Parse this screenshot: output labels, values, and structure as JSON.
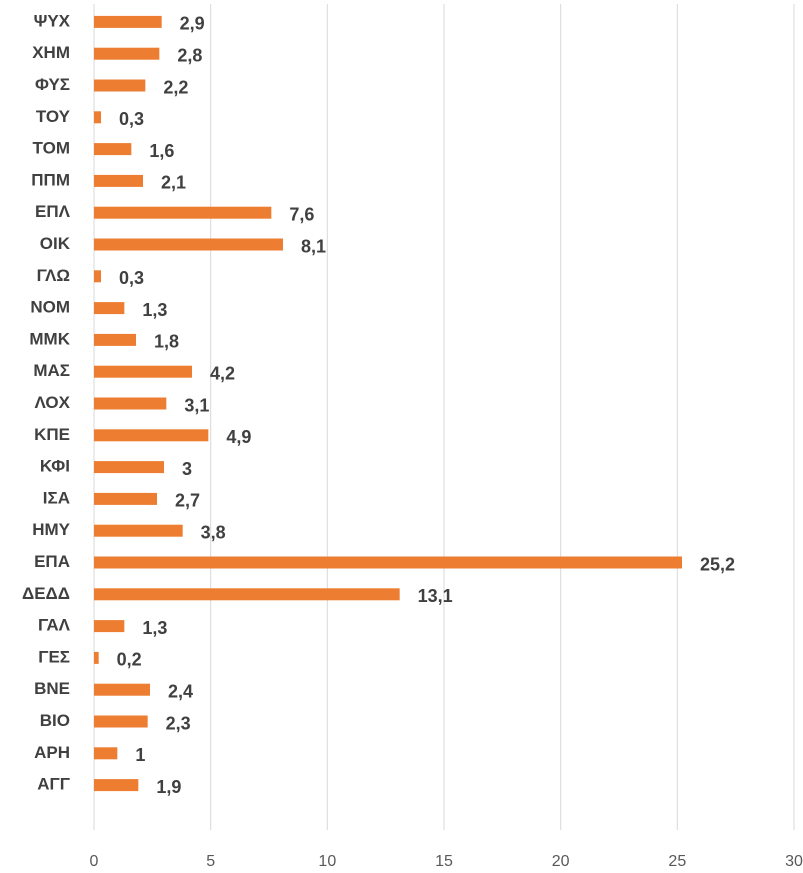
{
  "chart_data": {
    "type": "bar",
    "orientation": "horizontal",
    "categories": [
      "ΨΥΧ",
      "ΧΗΜ",
      "ΦΥΣ",
      "ΤΟΥ",
      "ΤΟΜ",
      "ΠΠΜ",
      "ΕΠΛ",
      "ΟΙΚ",
      "ΓΛΩ",
      "ΝΟΜ",
      "ΜΜΚ",
      "ΜΑΣ",
      "ΛΟΧ",
      "ΚΠΕ",
      "ΚΦΙ",
      "ΙΣΑ",
      "ΗΜΥ",
      "ΕΠΑ",
      "ΔΕΔΔ",
      "ΓΑΛ",
      "ΓΕΣ",
      "ΒΝΕ",
      "ΒΙΟ",
      "ΑΡΗ",
      "ΑΓΓ"
    ],
    "values": [
      2.9,
      2.8,
      2.2,
      0.3,
      1.6,
      2.1,
      7.6,
      8.1,
      0.3,
      1.3,
      1.8,
      4.2,
      3.1,
      4.9,
      3,
      2.7,
      3.8,
      25.2,
      13.1,
      1.3,
      0.2,
      2.4,
      2.3,
      1,
      1.9
    ],
    "value_labels": [
      "2,9",
      "2,8",
      "2,2",
      "0,3",
      "1,6",
      "2,1",
      "7,6",
      "8,1",
      "0,3",
      "1,3",
      "1,8",
      "4,2",
      "3,1",
      "4,9",
      "3",
      "2,7",
      "3,8",
      "25,2",
      "13,1",
      "1,3",
      "0,2",
      "2,4",
      "2,3",
      "1",
      "1,9"
    ],
    "color": "#ed7d31",
    "xlim": [
      0,
      30
    ],
    "xticks": [
      0,
      5,
      10,
      15,
      20,
      25,
      30
    ],
    "grid": true
  }
}
